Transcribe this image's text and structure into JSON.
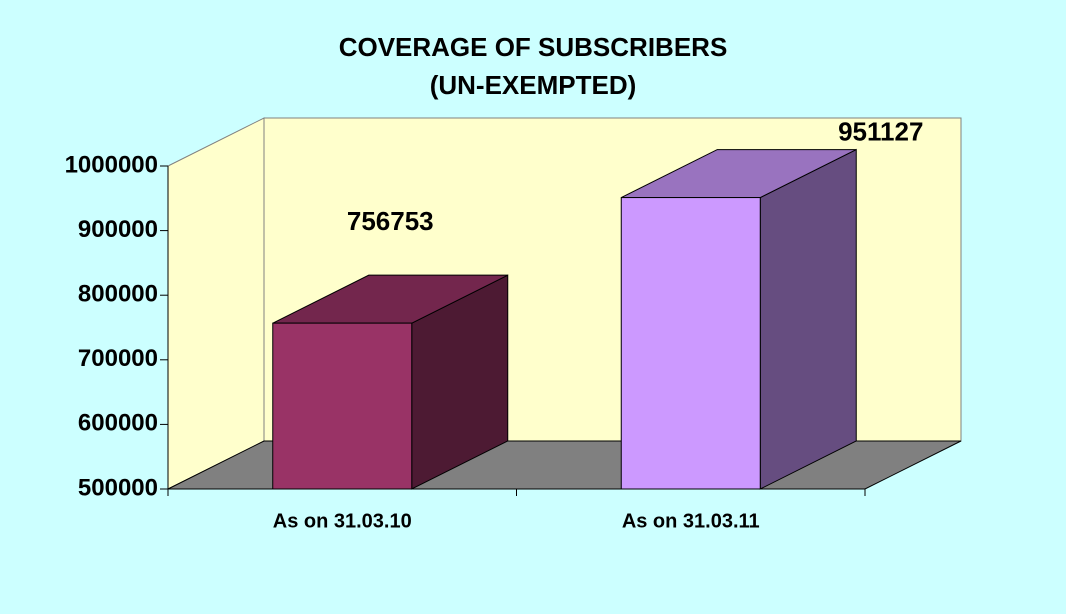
{
  "chart_data": {
    "type": "bar3d",
    "title_lines": [
      "COVERAGE OF SUBSCRIBERS",
      "(UN-EXEMPTED)"
    ],
    "categories": [
      "As on 31.03.10",
      "As on 31.03.11"
    ],
    "values": [
      756753,
      951127
    ],
    "colors": [
      "#993366",
      "#cc99ff"
    ],
    "ylim": [
      500000,
      1000000
    ],
    "yticks": [
      500000,
      600000,
      700000,
      800000,
      900000,
      1000000
    ],
    "grid": false
  }
}
